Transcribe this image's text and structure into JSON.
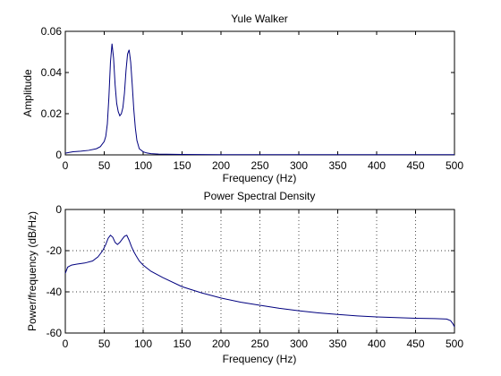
{
  "chart_data": [
    {
      "type": "line",
      "title": "Yule Walker",
      "xlabel": "Frequency (Hz)",
      "ylabel": "Amplitude",
      "xlim": [
        0,
        500
      ],
      "ylim": [
        0,
        0.06
      ],
      "xticks": [
        0,
        50,
        100,
        150,
        200,
        250,
        300,
        350,
        400,
        450,
        500
      ],
      "xtick_labels": [
        "0",
        "50",
        "100",
        "150",
        "200",
        "250",
        "300",
        "350",
        "400",
        "450",
        "500"
      ],
      "yticks": [
        0,
        0.02,
        0.04,
        0.06
      ],
      "ytick_labels": [
        "0",
        "0.02",
        "0.04",
        "0.06"
      ],
      "grid": false,
      "line_color": "#00007f",
      "x": [
        0,
        5,
        10,
        20,
        30,
        40,
        45,
        50,
        52,
        54,
        56,
        58,
        60,
        62,
        64,
        66,
        68,
        70,
        72,
        74,
        76,
        78,
        80,
        82,
        84,
        86,
        88,
        90,
        92,
        95,
        100,
        105,
        110,
        120,
        130,
        150,
        200,
        300,
        400,
        500
      ],
      "y": [
        0.0008,
        0.0012,
        0.0015,
        0.0018,
        0.0022,
        0.003,
        0.004,
        0.0065,
        0.009,
        0.015,
        0.028,
        0.045,
        0.054,
        0.047,
        0.034,
        0.025,
        0.021,
        0.019,
        0.02,
        0.023,
        0.03,
        0.041,
        0.049,
        0.051,
        0.045,
        0.034,
        0.022,
        0.013,
        0.007,
        0.003,
        0.0015,
        0.0009,
        0.0006,
        0.0004,
        0.0003,
        0.0002,
        0.0001,
        0.0001,
        0.0001,
        0.0001
      ]
    },
    {
      "type": "line",
      "title": "Power Spectral Density",
      "xlabel": "Frequency (Hz)",
      "ylabel": "Power/frequency (dB/Hz)",
      "xlim": [
        0,
        500
      ],
      "ylim": [
        -60,
        0
      ],
      "xticks": [
        0,
        50,
        100,
        150,
        200,
        250,
        300,
        350,
        400,
        450,
        500
      ],
      "xtick_labels": [
        "0",
        "50",
        "100",
        "150",
        "200",
        "250",
        "300",
        "350",
        "400",
        "450",
        "500"
      ],
      "yticks": [
        -60,
        -40,
        -20,
        0
      ],
      "ytick_labels": [
        "-60",
        "-40",
        "-20",
        "0"
      ],
      "grid": true,
      "line_color": "#00007f",
      "x": [
        0,
        3,
        8,
        15,
        25,
        35,
        42,
        48,
        52,
        55,
        58,
        61,
        64,
        67,
        70,
        73,
        76,
        79,
        82,
        85,
        88,
        91,
        95,
        100,
        110,
        125,
        150,
        175,
        200,
        225,
        250,
        275,
        300,
        325,
        350,
        375,
        400,
        425,
        450,
        475,
        490,
        495,
        498,
        500
      ],
      "y": [
        -31,
        -28,
        -27,
        -26.5,
        -26,
        -25,
        -23,
        -20,
        -17,
        -14,
        -12.5,
        -13.5,
        -16,
        -17,
        -16,
        -14.5,
        -13,
        -12.5,
        -15,
        -18,
        -20.5,
        -22.5,
        -25,
        -27,
        -30,
        -33,
        -37.5,
        -40.5,
        -43,
        -45,
        -46.5,
        -48,
        -49.2,
        -50.2,
        -51,
        -51.7,
        -52.2,
        -52.5,
        -52.8,
        -53,
        -53.2,
        -54,
        -55.5,
        -57
      ]
    }
  ]
}
